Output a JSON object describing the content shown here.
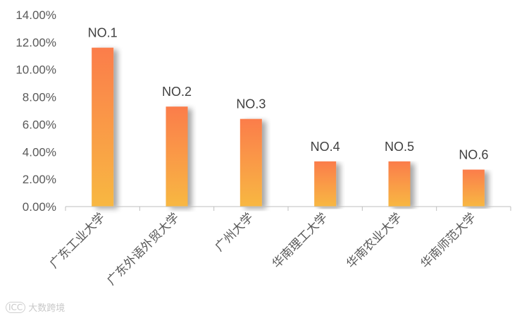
{
  "chart_data": {
    "type": "bar",
    "categories": [
      "广东工业大学",
      "广东外语外贸大学",
      "广州大学",
      "华南理工大学",
      "华南农业大学",
      "华南师范大学"
    ],
    "values": [
      11.6,
      7.3,
      6.4,
      3.3,
      3.3,
      2.7
    ],
    "data_labels": [
      "NO.1",
      "NO.2",
      "NO.3",
      "NO.4",
      "NO.5",
      "NO.6"
    ],
    "ylim": [
      0,
      14
    ],
    "yticks": [
      "0.00%",
      "2.00%",
      "4.00%",
      "6.00%",
      "8.00%",
      "10.00%",
      "12.00%",
      "14.00%"
    ],
    "grid": false,
    "colors": {
      "bar_top": "#fb7d4b",
      "bar_bottom": "#f8b842",
      "axis": "#bfbfbf"
    }
  },
  "watermark": {
    "logo": "ICC",
    "text": "大数跨境"
  }
}
